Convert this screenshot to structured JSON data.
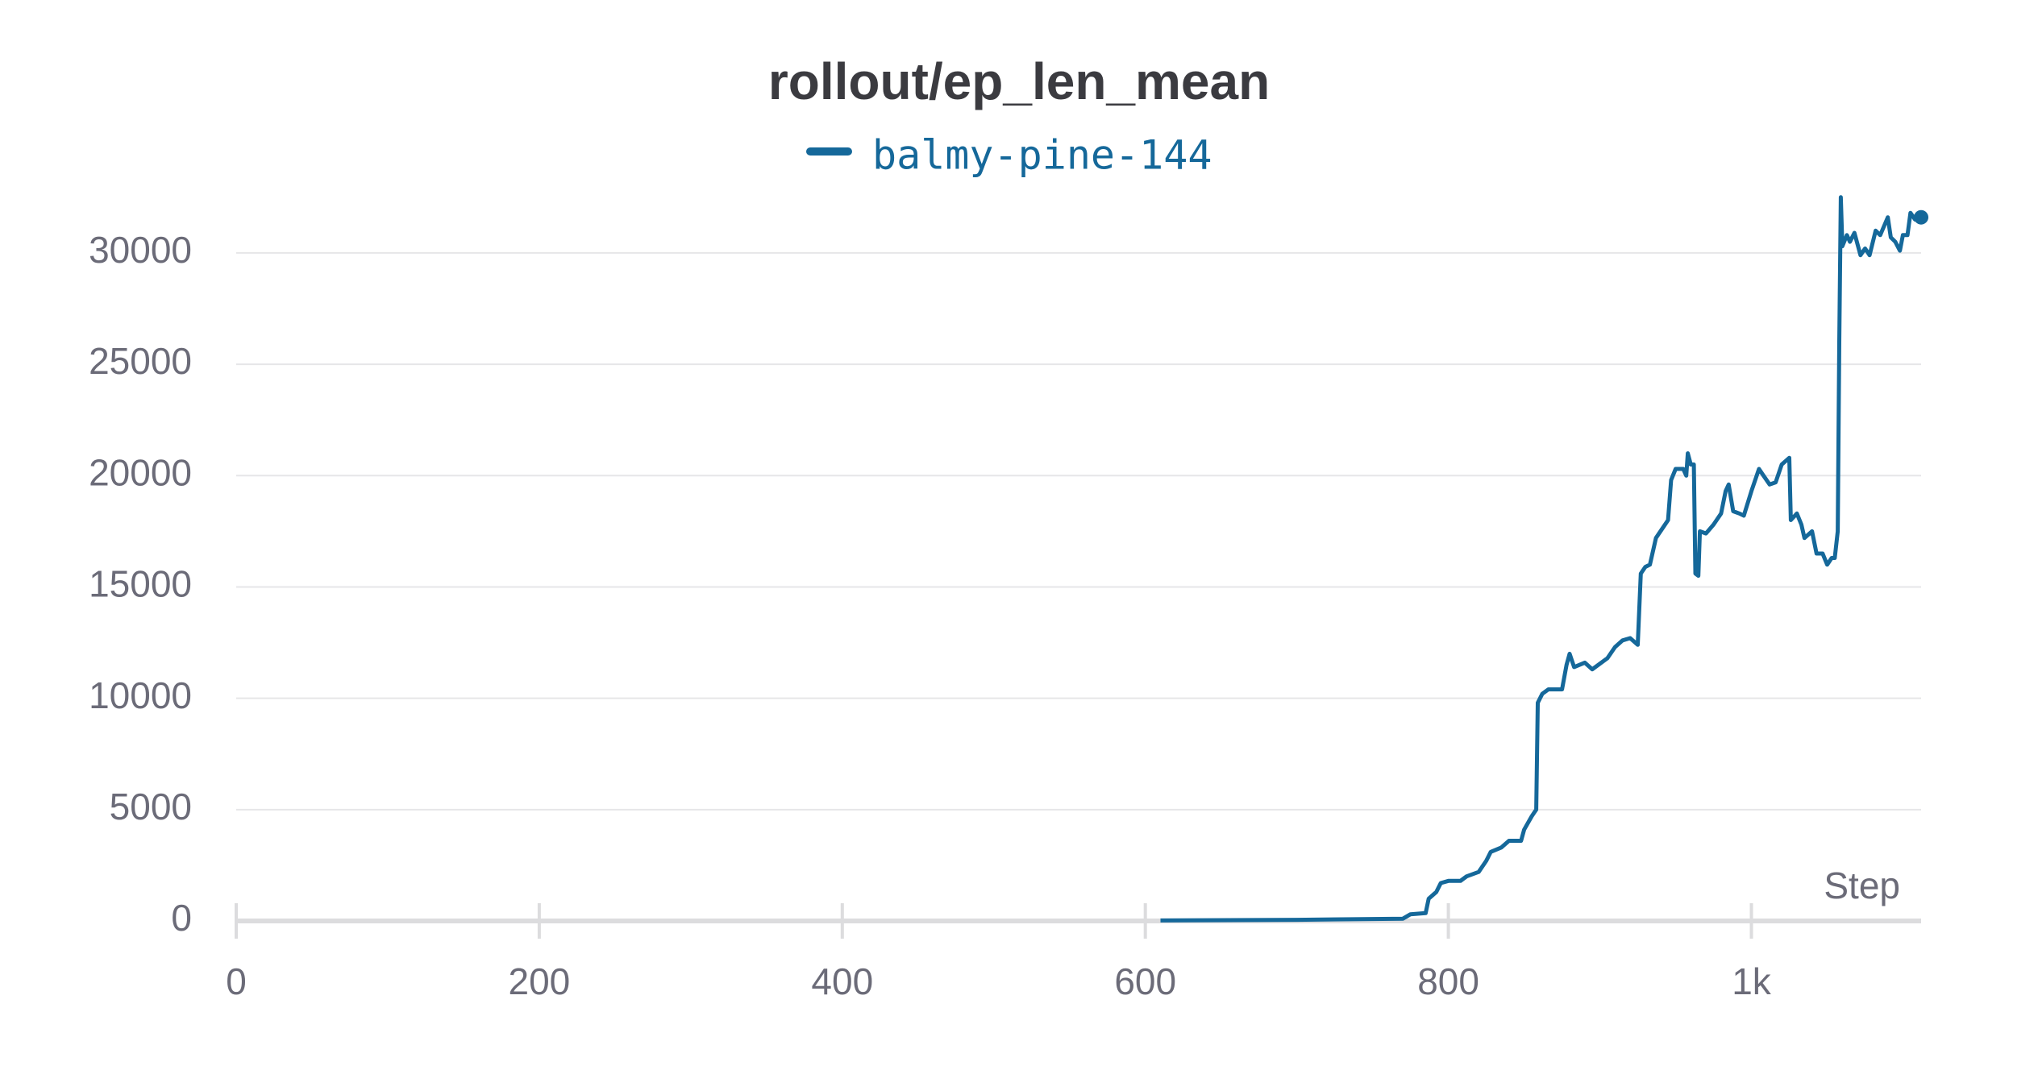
{
  "chart_data": {
    "type": "line",
    "title": "rollout/ep_len_mean",
    "x_label": "Step",
    "x": [
      610,
      700,
      770,
      775,
      785,
      787,
      792,
      795,
      800,
      808,
      812,
      820,
      825,
      828,
      835,
      840,
      848,
      850,
      855,
      858,
      859,
      862,
      866,
      875,
      878,
      880,
      883,
      890,
      895,
      905,
      910,
      915,
      920,
      925,
      927,
      930,
      933,
      937,
      942,
      945,
      947,
      950,
      955,
      957,
      958,
      960,
      962,
      963,
      965,
      966,
      970,
      975,
      980,
      983,
      985,
      988,
      992,
      995,
      1000,
      1005,
      1008,
      1012,
      1016,
      1020,
      1025,
      1026,
      1030,
      1033,
      1035,
      1040,
      1043,
      1047,
      1050,
      1053,
      1055,
      1057,
      1058,
      1059,
      1060,
      1063,
      1065,
      1068,
      1072,
      1075,
      1078,
      1082,
      1085,
      1090,
      1092,
      1095,
      1098,
      1100,
      1103,
      1105,
      1108,
      1112
    ],
    "series": [
      {
        "name": "balmy-pine-144",
        "color": "#15689a",
        "values": [
          20,
          50,
          100,
          300,
          350,
          1000,
          1300,
          1700,
          1800,
          1800,
          2000,
          2200,
          2700,
          3100,
          3300,
          3600,
          3600,
          4100,
          4700,
          5000,
          9800,
          10200,
          10400,
          10400,
          11500,
          12000,
          11400,
          11600,
          11300,
          11800,
          12300,
          12600,
          12700,
          12400,
          15600,
          15900,
          16000,
          17200,
          17700,
          18000,
          19800,
          20300,
          20300,
          20000,
          21000,
          20500,
          20500,
          15600,
          15500,
          17500,
          17400,
          17800,
          18300,
          19300,
          19600,
          18400,
          18300,
          18200,
          19300,
          20300,
          20000,
          19600,
          19700,
          20500,
          20800,
          18000,
          18300,
          17800,
          17200,
          17500,
          16500,
          16500,
          16000,
          16300,
          16300,
          17500,
          26000,
          32500,
          30300,
          30800,
          30500,
          30900,
          29900,
          30200,
          29900,
          31000,
          30800,
          31600,
          30700,
          30500,
          30100,
          30800,
          30800,
          31800,
          31500,
          31600
        ]
      }
    ],
    "xlim": [
      0,
      1112
    ],
    "xticks": [
      0,
      200,
      400,
      600,
      800,
      {
        "value": 1000,
        "label": "1k"
      }
    ],
    "ylim": [
      0,
      33000
    ],
    "yticks": [
      0,
      5000,
      10000,
      15000,
      20000,
      25000,
      30000
    ],
    "grid": true
  }
}
